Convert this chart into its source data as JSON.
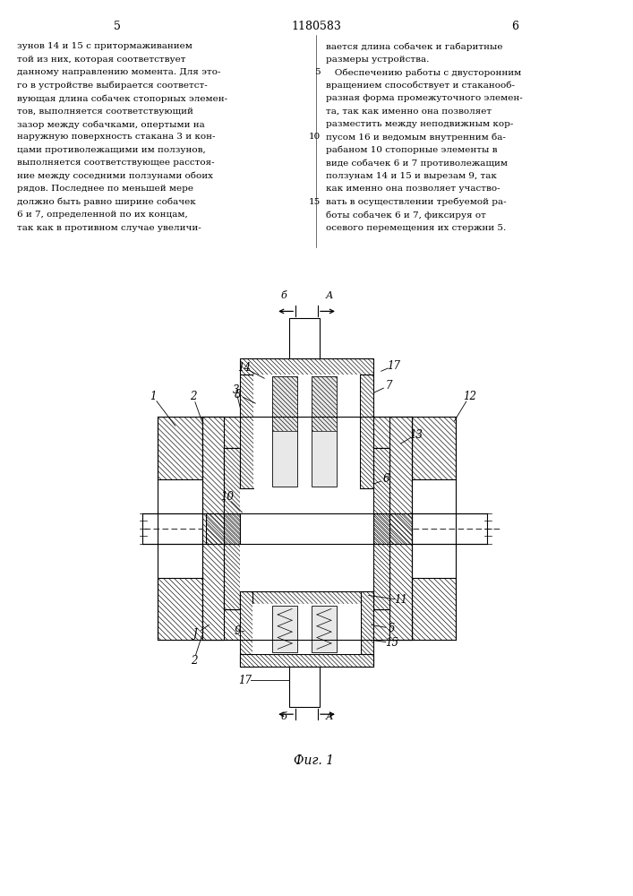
{
  "page_number_left": "5",
  "page_number_center": "1180583",
  "page_number_right": "6",
  "text_left": "зунов 14 и 15 с притормаживанием\nтой из них, которая соответствует\nданному направлению момента. Для это-\nго в устройстве выбирается соответст-\nвующая длина собачек стопорных элемен-\nтов, выполняется соответствующий\nзазор между собачками, опертыми на\nнаружную поверхность стакана 3 и кон-\nцами противолежащими им ползунов,\nвыполняется соответствующее расстоя-\nние между соседними ползунами обоих\nрядов. Последнее по меньшей мере\nдолжно быть равно ширине собачек\n6 и 7, определенной по их концам,\nтак как в противном случае увеличи-",
  "text_right": "вается длина собачек и габаритные\nразмеры устройства.\n   Обеспечению работы с двусторонним\nвращением способствует и стаканооб-\nразная форма промежуточного элемен-\nта, так как именно она позволяет\nразместить между неподвижным кор-\nпусом 16 и ведомым внутренним ба-\nрабаном 10 стопорные элементы в\nвиде собачек 6 и 7 противолежащим\nползунам 14 и 15 и вырезам 9, так\nкак именно она позволяет участво-\nвать в осуществлении требуемой ра-\nботы собачек 6 и 7, фиксируя от\nосевого перемещения их стержни 5.",
  "figure_caption": "Фиг. 1",
  "bg_color": "#ffffff",
  "line_color": "#000000"
}
